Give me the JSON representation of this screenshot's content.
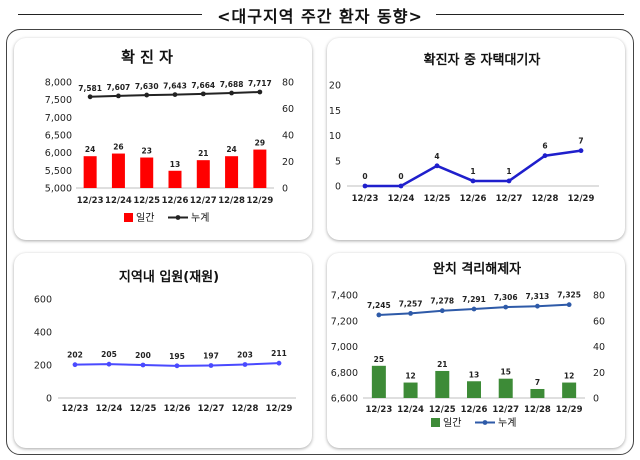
{
  "page_title": "<대구지역 주간 환자 동향>",
  "chart_data": [
    {
      "id": "confirmed",
      "type": "bar",
      "title": "확 진 자",
      "categories": [
        "12/23",
        "12/24",
        "12/25",
        "12/26",
        "12/27",
        "12/28",
        "12/29"
      ],
      "series": [
        {
          "name": "일간",
          "type": "bar",
          "axis": "right",
          "color": "#ff0000",
          "values": [
            24,
            26,
            23,
            13,
            21,
            24,
            29
          ],
          "labels": [
            "24",
            "26",
            "23",
            "13",
            "21",
            "24",
            "29"
          ]
        },
        {
          "name": "누계",
          "type": "line",
          "axis": "left",
          "color": "#222222",
          "values": [
            7581,
            7607,
            7630,
            7643,
            7664,
            7688,
            7717
          ],
          "labels": [
            "7,581",
            "7,607",
            "7,630",
            "7,643",
            "7,664",
            "7,688",
            "7,717"
          ]
        }
      ],
      "y_left": {
        "min": 5000,
        "max": 8000,
        "ticks": [
          "5,000",
          "5,500",
          "6,000",
          "6,500",
          "7,000",
          "7,500",
          "8,000"
        ]
      },
      "y_right": {
        "min": 0,
        "max": 80,
        "ticks": [
          "0",
          "20",
          "40",
          "60",
          "80"
        ]
      },
      "legend": "bottom-center"
    },
    {
      "id": "home-treatment",
      "type": "line",
      "title": "확진자 중 자택대기자",
      "categories": [
        "12/23",
        "12/24",
        "12/25",
        "12/26",
        "12/27",
        "12/28",
        "12/29"
      ],
      "series": [
        {
          "type": "line",
          "color": "#1f1fcc",
          "values": [
            0,
            0,
            4,
            1,
            1,
            6,
            7
          ],
          "labels": [
            "0",
            "0",
            "4",
            "1",
            "1",
            "6",
            "7"
          ]
        }
      ],
      "y_left": {
        "min": 0,
        "max": 20,
        "ticks": [
          "0",
          "5",
          "10",
          "15",
          "20"
        ]
      }
    },
    {
      "id": "hospitalized",
      "type": "line",
      "title": "지역내 입원(재원)",
      "categories": [
        "12/23",
        "12/24",
        "12/25",
        "12/26",
        "12/27",
        "12/28",
        "12/29"
      ],
      "series": [
        {
          "type": "line",
          "color": "#4a4aff",
          "values": [
            202,
            205,
            200,
            195,
            197,
            203,
            211
          ],
          "labels": [
            "202",
            "205",
            "200",
            "195",
            "197",
            "203",
            "211"
          ]
        }
      ],
      "y_left": {
        "min": 0,
        "max": 600,
        "ticks": [
          "0",
          "200",
          "400",
          "600"
        ]
      }
    },
    {
      "id": "released",
      "type": "bar",
      "title": "완치 격리해제자",
      "categories": [
        "12/23",
        "12/24",
        "12/25",
        "12/26",
        "12/27",
        "12/28",
        "12/29"
      ],
      "series": [
        {
          "name": "일간",
          "type": "bar",
          "axis": "right",
          "color": "#3d8b37",
          "values": [
            25,
            12,
            21,
            13,
            15,
            7,
            12
          ],
          "labels": [
            "25",
            "12",
            "21",
            "13",
            "15",
            "7",
            "12"
          ]
        },
        {
          "name": "누계",
          "type": "line",
          "axis": "left",
          "color": "#2e5aa8",
          "values": [
            7245,
            7257,
            7278,
            7291,
            7306,
            7313,
            7325
          ],
          "labels": [
            "7,245",
            "7,257",
            "7,278",
            "7,291",
            "7,306",
            "7,313",
            "7,325"
          ]
        }
      ],
      "y_left": {
        "min": 6600,
        "max": 7400,
        "ticks": [
          "6,600",
          "6,800",
          "7,000",
          "7,200",
          "7,400"
        ]
      },
      "y_right": {
        "min": 0,
        "max": 80,
        "ticks": [
          "0",
          "20",
          "40",
          "60",
          "80"
        ]
      },
      "legend": "bottom-center"
    }
  ]
}
